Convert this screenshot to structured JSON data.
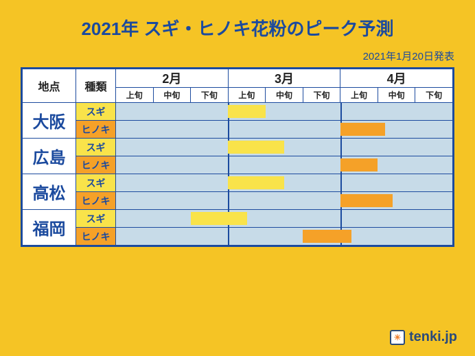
{
  "colors": {
    "page_bg": "#f5c425",
    "header_bg": "#f5c425",
    "title_text": "#1b4a9e",
    "subtitle_text": "#1b4a9e",
    "table_border": "#1b4a9e",
    "cell_bg_default": "#c7dbe8",
    "cell_bg_white": "#ffffff",
    "loc_text": "#1b4a9e",
    "type_sugi_bg": "#f9e34a",
    "type_hinoki_bg": "#f5a128",
    "type_text": "#1b4a9e",
    "bar_sugi": "#f9e34a",
    "bar_hinoki": "#f5a128",
    "head_text": "#222222",
    "logo_text": "#2a4a7a",
    "logo_border": "#2a4a7a",
    "logo_sun": "#f08030"
  },
  "typography": {
    "title_size": 26,
    "subtitle_size": 15,
    "month_head_size": 18,
    "subhead_size": 12,
    "loc_size": 24,
    "type_size": 14,
    "head_label_size": 16,
    "logo_size": 20
  },
  "title": "2021年 スギ・ヒノキ花粉のピーク予測",
  "subtitle": "2021年1月20日発表",
  "headers": {
    "location": "地点",
    "type": "種類",
    "months": [
      "2月",
      "3月",
      "4月"
    ],
    "subperiods": [
      "上旬",
      "中旬",
      "下旬"
    ]
  },
  "timeline": {
    "total_units": 9,
    "unit_labels": [
      "2上",
      "2中",
      "2下",
      "3上",
      "3中",
      "3下",
      "4上",
      "4中",
      "4下"
    ]
  },
  "locations": [
    {
      "name": "大阪",
      "rows": [
        {
          "type": "スギ",
          "type_key": "sugi",
          "bar": {
            "start": 3,
            "span": 1
          }
        },
        {
          "type": "ヒノキ",
          "type_key": "hinoki",
          "bar": {
            "start": 6,
            "span": 1.2
          }
        }
      ]
    },
    {
      "name": "広島",
      "rows": [
        {
          "type": "スギ",
          "type_key": "sugi",
          "bar": {
            "start": 3,
            "span": 1.5
          }
        },
        {
          "type": "ヒノキ",
          "type_key": "hinoki",
          "bar": {
            "start": 6,
            "span": 1
          }
        }
      ]
    },
    {
      "name": "高松",
      "rows": [
        {
          "type": "スギ",
          "type_key": "sugi",
          "bar": {
            "start": 3,
            "span": 1.5
          }
        },
        {
          "type": "ヒノキ",
          "type_key": "hinoki",
          "bar": {
            "start": 6,
            "span": 1.4
          }
        }
      ]
    },
    {
      "name": "福岡",
      "rows": [
        {
          "type": "スギ",
          "type_key": "sugi",
          "bar": {
            "start": 2,
            "span": 1.5
          }
        },
        {
          "type": "ヒノキ",
          "type_key": "hinoki",
          "bar": {
            "start": 5,
            "span": 1.3
          }
        }
      ]
    }
  ],
  "logo": {
    "text": "tenki.jp",
    "icon_glyph": "☀"
  }
}
